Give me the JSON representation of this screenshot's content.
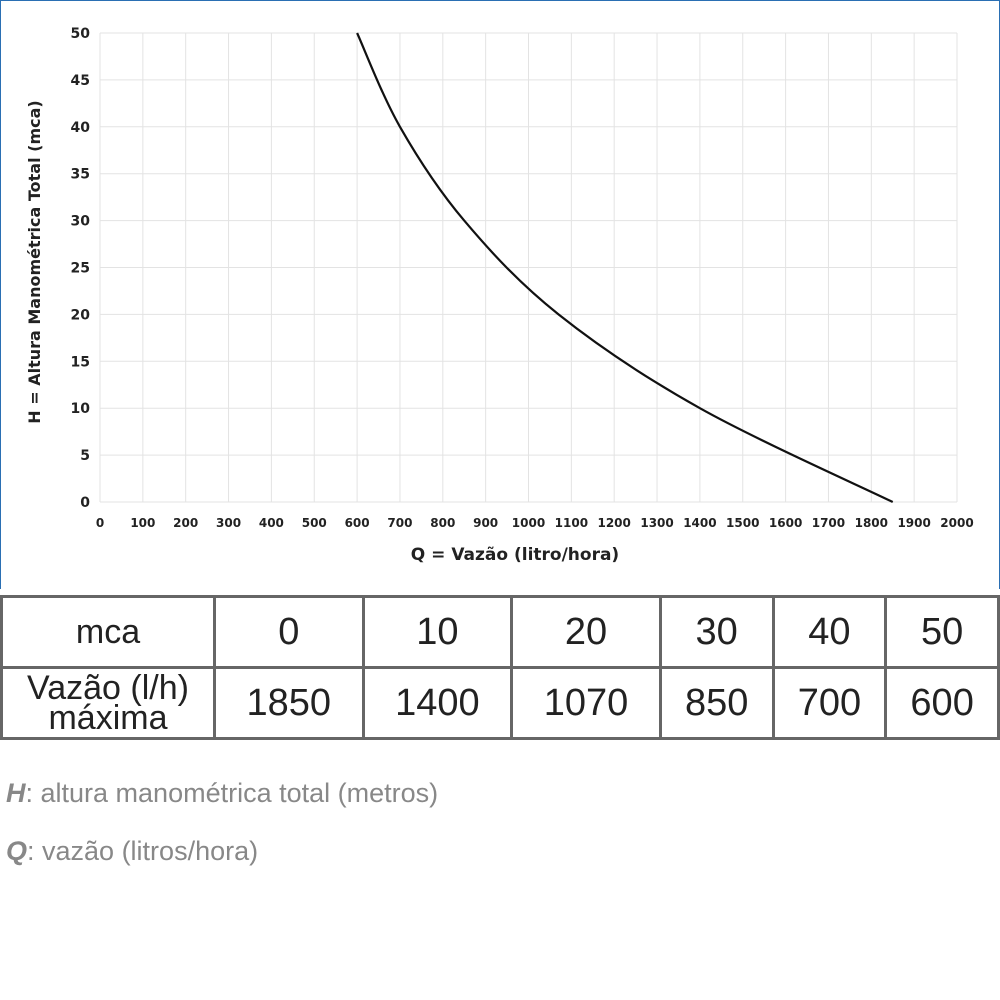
{
  "chart_data": {
    "type": "line",
    "xlabel": "Q = Vazão (litro/hora)",
    "ylabel": "H = Altura Manométrica Total (mca)",
    "x": [
      600,
      700,
      850,
      1070,
      1400,
      1850
    ],
    "series": [
      {
        "color": "#111111",
        "values": [
          50,
          40,
          30,
          20,
          10,
          0
        ]
      }
    ],
    "xlim": [
      0,
      2000
    ],
    "xticks": [
      0,
      100,
      200,
      300,
      400,
      500,
      600,
      700,
      800,
      900,
      1000,
      1100,
      1200,
      1300,
      1400,
      1500,
      1600,
      1700,
      1800,
      1900,
      2000
    ],
    "ylim": [
      0,
      50
    ],
    "yticks": [
      0,
      5,
      10,
      15,
      20,
      25,
      30,
      35,
      40,
      45,
      50
    ],
    "grid": true
  },
  "table": {
    "rows": [
      {
        "label": [
          "mca"
        ],
        "cells": [
          "0",
          "10",
          "20",
          "30",
          "40",
          "50"
        ]
      },
      {
        "label": [
          "Vazão (l/h)",
          "máxima"
        ],
        "cells": [
          "1850",
          "1400",
          "1070",
          "850",
          "700",
          "600"
        ]
      }
    ]
  },
  "notes": [
    {
      "term": "H",
      "text": ": altura manométrica total (metros)"
    },
    {
      "term": "Q",
      "text": ": vazão (litros/hora)"
    }
  ]
}
